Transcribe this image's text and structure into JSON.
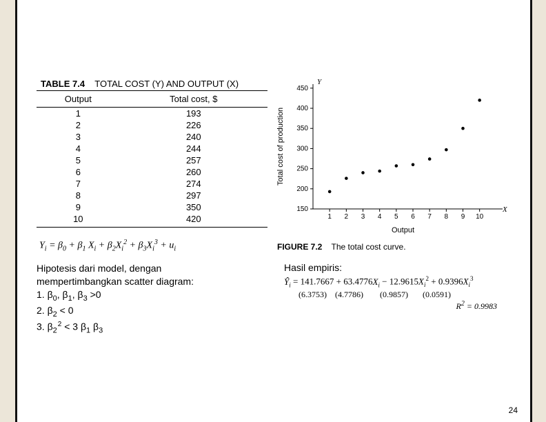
{
  "table": {
    "number": "TABLE 7.4",
    "title": "TOTAL COST (Y) AND OUTPUT (X)",
    "col_output": "Output",
    "col_cost": "Total cost, $",
    "rows": [
      {
        "x": "1",
        "y": "193"
      },
      {
        "x": "2",
        "y": "226"
      },
      {
        "x": "3",
        "y": "240"
      },
      {
        "x": "4",
        "y": "244"
      },
      {
        "x": "5",
        "y": "257"
      },
      {
        "x": "6",
        "y": "260"
      },
      {
        "x": "7",
        "y": "274"
      },
      {
        "x": "8",
        "y": "297"
      },
      {
        "x": "9",
        "y": "350"
      },
      {
        "x": "10",
        "y": "420"
      }
    ]
  },
  "model_equation": {
    "lhs": "Y",
    "lhs_sub": "i",
    "b0": "β",
    "b0_sub": "0",
    "b1": "β",
    "b1_sub": "1",
    "x1": "X",
    "x1_sub": "i",
    "b2": "β",
    "b2_sub": "2",
    "x2": "X",
    "x2_sub": "i",
    "x2_sup": "2",
    "b3": "β",
    "b3_sub": "3",
    "x3": "X",
    "x3_sub": "i",
    "x3_sup": "3",
    "err": "u",
    "err_sub": "i"
  },
  "chart": {
    "type": "scatter",
    "x_axis_label": "Output",
    "y_axis_label": "Total cost of production",
    "x_var": "X",
    "y_var": "Y",
    "xlim": [
      0,
      10.8
    ],
    "ylim": [
      150,
      460
    ],
    "xticks": [
      1,
      2,
      3,
      4,
      5,
      6,
      7,
      8,
      9,
      10
    ],
    "yticks": [
      150,
      200,
      250,
      300,
      350,
      400,
      450
    ],
    "points": [
      {
        "x": 1,
        "y": 193
      },
      {
        "x": 2,
        "y": 226
      },
      {
        "x": 3,
        "y": 240
      },
      {
        "x": 4,
        "y": 244
      },
      {
        "x": 5,
        "y": 257
      },
      {
        "x": 6,
        "y": 260
      },
      {
        "x": 7,
        "y": 274
      },
      {
        "x": 8,
        "y": 297
      },
      {
        "x": 9,
        "y": 350
      },
      {
        "x": 10,
        "y": 420
      }
    ],
    "point_color": "#000000",
    "point_radius": 2.3,
    "axis_color": "#000000",
    "tick_fontsize": 10,
    "label_fontsize": 11,
    "background_color": "#ffffff"
  },
  "figure_caption": {
    "number": "FIGURE 7.2",
    "text": "The total cost curve."
  },
  "hipotesis": {
    "title_line1": "Hipotesis dari model, dengan",
    "title_line2": "mempertimbangkan  scatter diagram:",
    "h1_pre": "1. β",
    "h1_text": " >0",
    "h2_pre": "2. β",
    "h2_text": " < 0",
    "h3_pre": "3. β",
    "h3_mid": " < 3 β",
    "h3_end": " β",
    "sub0": "0",
    "sub1": "1",
    "sub2": "2",
    "sub3": "3",
    "sup2": "2",
    "comma": ", β"
  },
  "hasil": {
    "title": "Hasil empiris:",
    "eq_c0": "141.7667",
    "eq_c1": "63.4776",
    "eq_c2": "12.9615",
    "eq_c3": "0.9396",
    "se_c0": "(6.3753)",
    "se_c1": "(4.7786)",
    "se_c2": "(0.9857)",
    "se_c3": "(0.0591)",
    "r2_label": "R",
    "r2_val": "0.9983"
  },
  "page_number": "24",
  "colors": {
    "page_bg": "#ffffff",
    "outer_bg": "#ece6d9",
    "text": "#000000"
  }
}
